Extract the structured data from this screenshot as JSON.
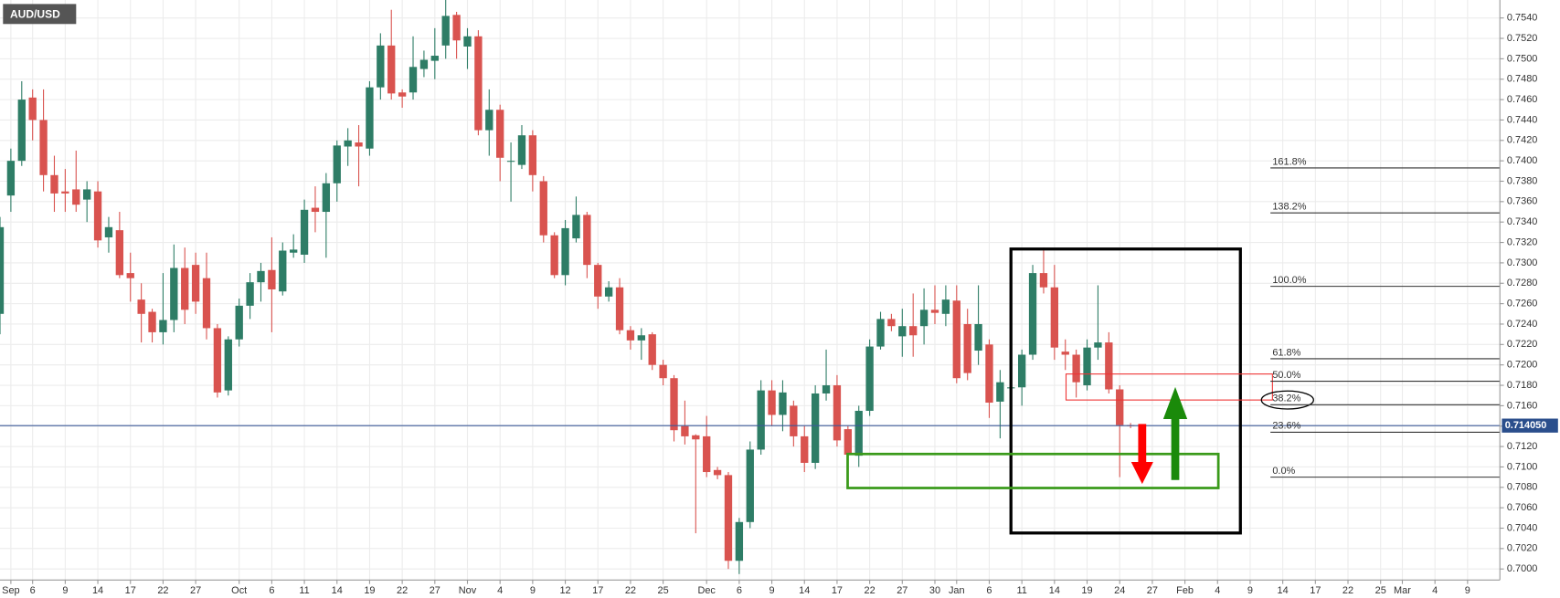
{
  "chart_data": {
    "type": "candlestick",
    "title": "AUD/USD",
    "categories": [
      null,
      "Sep",
      null,
      "6",
      null,
      null,
      "9",
      null,
      null,
      "14",
      null,
      null,
      "17",
      null,
      null,
      "22",
      null,
      null,
      "27",
      null,
      null,
      null,
      "Oct",
      null,
      null,
      "6",
      null,
      null,
      "11",
      null,
      null,
      "14",
      null,
      null,
      "19",
      null,
      null,
      "22",
      null,
      null,
      "27",
      null,
      null,
      "Nov",
      null,
      null,
      "4",
      null,
      null,
      "9",
      null,
      null,
      "12",
      null,
      null,
      "17",
      null,
      null,
      "22",
      null,
      null,
      "25",
      null,
      null,
      null,
      "Dec",
      null,
      null,
      "6",
      null,
      null,
      "9",
      null,
      null,
      "14",
      null,
      null,
      "17",
      null,
      null,
      "22",
      null,
      null,
      "27",
      null,
      null,
      "30",
      null,
      "Jan",
      null,
      null,
      "6",
      null,
      null,
      "11",
      null,
      null,
      "14",
      null,
      null,
      "19",
      null,
      null,
      "24",
      null,
      null,
      "27",
      null,
      null,
      "Feb",
      null,
      null,
      "4",
      null,
      null,
      "9",
      null,
      null,
      "14",
      null,
      null,
      "17",
      null,
      null,
      "22",
      null,
      null,
      "25",
      null,
      "Mar",
      null,
      null,
      "4",
      null,
      null,
      "9",
      null,
      null
    ],
    "open": [
      0.725,
      0.7366,
      0.74,
      0.7462,
      0.744,
      0.7386,
      0.737,
      0.7372,
      0.7362,
      0.737,
      0.7325,
      0.7332,
      0.729,
      0.7264,
      0.7252,
      0.7232,
      0.7244,
      0.7295,
      0.7298,
      0.7285,
      0.7236,
      0.7175,
      0.7225,
      0.7258,
      0.7281,
      0.7293,
      0.7272,
      0.731,
      0.7308,
      0.7354,
      0.735,
      0.7378,
      0.7414,
      0.7418,
      0.7412,
      0.7472,
      0.7513,
      0.7467,
      0.7467,
      0.749,
      0.7498,
      0.7513,
      0.7543,
      0.7512,
      0.7522,
      0.743,
      0.745,
      0.74,
      0.7396,
      0.7425,
      0.738,
      0.7327,
      0.7288,
      0.7324,
      0.7347,
      0.7298,
      0.7267,
      0.7276,
      0.7234,
      0.7224,
      0.723,
      0.72,
      0.7187,
      0.714,
      0.7131,
      0.713,
      0.7097,
      0.7092,
      0.7008,
      0.7046,
      0.7117,
      0.7175,
      0.7151,
      0.716,
      0.713,
      0.7104,
      0.7172,
      0.718,
      0.7137,
      0.7111,
      0.7155,
      0.7218,
      0.7245,
      0.7228,
      0.7238,
      0.7238,
      0.7254,
      0.725,
      0.7263,
      0.724,
      0.7214,
      0.722,
      0.7164,
      0.7177,
      0.7178,
      0.721,
      0.729,
      0.7276,
      0.7213,
      0.721,
      0.718,
      0.7217,
      0.7222,
      0.7176,
      0.7141,
      null,
      null,
      null,
      null,
      null,
      null,
      null,
      null,
      null,
      null,
      null,
      null,
      null,
      null,
      null,
      null,
      null,
      null,
      null,
      null,
      null,
      null,
      null,
      null,
      null,
      null,
      null,
      null,
      null,
      null,
      null,
      null,
      null
    ],
    "high": [
      0.7345,
      0.7412,
      0.7478,
      0.747,
      0.747,
      0.7405,
      0.7392,
      0.741,
      0.738,
      0.738,
      0.7345,
      0.735,
      0.731,
      0.728,
      0.7255,
      0.729,
      0.7318,
      0.7315,
      0.731,
      0.731,
      0.724,
      0.7228,
      0.7265,
      0.729,
      0.73,
      0.7325,
      0.732,
      0.7328,
      0.7362,
      0.7375,
      0.7388,
      0.742,
      0.7432,
      0.7435,
      0.7478,
      0.7525,
      0.7548,
      0.747,
      0.7522,
      0.7508,
      0.753,
      0.7558,
      0.7546,
      0.753,
      0.7528,
      0.747,
      0.7455,
      0.7418,
      0.7435,
      0.743,
      0.7385,
      0.733,
      0.7342,
      0.7365,
      0.735,
      0.73,
      0.7282,
      0.7285,
      0.7238,
      0.7236,
      0.7232,
      0.7205,
      0.719,
      0.7165,
      0.7132,
      0.715,
      0.71,
      0.7095,
      0.705,
      0.7125,
      0.7185,
      0.7185,
      0.7185,
      0.7165,
      0.714,
      0.718,
      0.7215,
      0.719,
      0.714,
      0.716,
      0.7225,
      0.7252,
      0.725,
      0.7255,
      0.727,
      0.7275,
      0.7278,
      0.7278,
      0.7278,
      0.7255,
      0.7278,
      0.7225,
      0.7195,
      0.719,
      0.7215,
      0.7298,
      0.7315,
      0.7298,
      0.7225,
      0.7215,
      0.7225,
      0.7278,
      0.7232,
      0.718,
      0.7143,
      null,
      null,
      null,
      null,
      null,
      null,
      null,
      null,
      null,
      null,
      null,
      null,
      null,
      null,
      null,
      null,
      null,
      null,
      null,
      null,
      null,
      null,
      null,
      null,
      null,
      null,
      null,
      null,
      null,
      null,
      null,
      null,
      null
    ],
    "low": [
      0.723,
      0.735,
      0.7395,
      0.742,
      0.737,
      0.735,
      0.735,
      0.735,
      0.734,
      0.7315,
      0.731,
      0.7285,
      0.7262,
      0.7222,
      0.7222,
      0.722,
      0.7232,
      0.724,
      0.725,
      0.7225,
      0.7168,
      0.717,
      0.7218,
      0.7245,
      0.7262,
      0.7232,
      0.7268,
      0.7305,
      0.73,
      0.733,
      0.7305,
      0.736,
      0.7395,
      0.7375,
      0.7405,
      0.746,
      0.746,
      0.7452,
      0.746,
      0.7482,
      0.748,
      0.75,
      0.75,
      0.749,
      0.7425,
      0.7405,
      0.738,
      0.736,
      0.7392,
      0.737,
      0.732,
      0.7285,
      0.7278,
      0.732,
      0.7285,
      0.7255,
      0.7262,
      0.723,
      0.7215,
      0.7205,
      0.7195,
      0.718,
      0.7125,
      0.7122,
      0.7035,
      0.709,
      0.7088,
      0.7,
      0.6995,
      0.704,
      0.7112,
      0.714,
      0.7135,
      0.712,
      0.7095,
      0.7098,
      0.7165,
      0.712,
      0.711,
      0.71,
      0.715,
      0.7215,
      0.7233,
      0.7208,
      0.7208,
      0.722,
      0.724,
      0.7238,
      0.7182,
      0.7185,
      0.72,
      0.7148,
      0.7128,
      0.7165,
      0.716,
      0.7205,
      0.727,
      0.7205,
      0.7195,
      0.7168,
      0.7175,
      0.7205,
      0.7172,
      0.709,
      0.7138,
      null,
      null,
      null,
      null,
      null,
      null,
      null,
      null,
      null,
      null,
      null,
      null,
      null,
      null,
      null,
      null,
      null,
      null,
      null,
      null,
      null,
      null,
      null,
      null,
      null,
      null,
      null,
      null,
      null,
      null,
      null,
      null,
      null
    ],
    "close": [
      0.7335,
      0.74,
      0.746,
      0.744,
      0.7386,
      0.7368,
      0.7368,
      0.7357,
      0.7372,
      0.7322,
      0.7335,
      0.7288,
      0.7285,
      0.725,
      0.7232,
      0.7244,
      0.7295,
      0.7254,
      0.7262,
      0.7236,
      0.7173,
      0.7225,
      0.7258,
      0.7281,
      0.7292,
      0.7274,
      0.7312,
      0.7313,
      0.7352,
      0.735,
      0.7378,
      0.7415,
      0.742,
      0.7414,
      0.7472,
      0.7513,
      0.7466,
      0.7463,
      0.7492,
      0.7499,
      0.7503,
      0.7542,
      0.7518,
      0.7522,
      0.743,
      0.745,
      0.7403,
      0.74,
      0.7425,
      0.7386,
      0.7327,
      0.7288,
      0.7334,
      0.7347,
      0.7298,
      0.7267,
      0.7276,
      0.7234,
      0.7224,
      0.7229,
      0.72,
      0.7187,
      0.7136,
      0.713,
      0.7127,
      0.7095,
      0.7092,
      0.7008,
      0.7046,
      0.7117,
      0.7175,
      0.7151,
      0.7173,
      0.713,
      0.7104,
      0.7172,
      0.718,
      0.7126,
      0.7112,
      0.7155,
      0.7218,
      0.7245,
      0.7238,
      0.7238,
      0.7229,
      0.7254,
      0.7251,
      0.7264,
      0.7187,
      0.7192,
      0.724,
      0.7163,
      0.7183,
      0.7178,
      0.721,
      0.729,
      0.7276,
      0.7217,
      0.721,
      0.7183,
      0.7217,
      0.7222,
      0.7176,
      0.7141,
      0.714,
      null,
      null,
      null,
      null,
      null,
      null,
      null,
      null,
      null,
      null,
      null,
      null,
      null,
      null,
      null,
      null,
      null,
      null,
      null,
      null,
      null,
      null,
      null,
      null,
      null,
      null,
      null,
      null,
      null,
      null,
      null,
      null,
      null
    ],
    "up_color": "#2e7d66",
    "down_color": "#d9534f",
    "ylim": [
      0.69892,
      0.75576
    ],
    "yticks": [
      {
        "value": 0.7,
        "label": "0.7000"
      },
      {
        "value": 0.702,
        "label": "0.7020"
      },
      {
        "value": 0.704,
        "label": "0.7040"
      },
      {
        "value": 0.706,
        "label": "0.7060"
      },
      {
        "value": 0.708,
        "label": "0.7080"
      },
      {
        "value": 0.71,
        "label": "0.7100"
      },
      {
        "value": 0.712,
        "label": "0.7120"
      },
      {
        "value": 0.714,
        "label": "0.7140"
      },
      {
        "value": 0.716,
        "label": "0.7160"
      },
      {
        "value": 0.718,
        "label": "0.7180"
      },
      {
        "value": 0.72,
        "label": "0.7200"
      },
      {
        "value": 0.722,
        "label": "0.7220"
      },
      {
        "value": 0.724,
        "label": "0.7240"
      },
      {
        "value": 0.726,
        "label": "0.7260"
      },
      {
        "value": 0.728,
        "label": "0.7280"
      },
      {
        "value": 0.73,
        "label": "0.7300"
      },
      {
        "value": 0.732,
        "label": "0.7320"
      },
      {
        "value": 0.734,
        "label": "0.7340"
      },
      {
        "value": 0.736,
        "label": "0.7360"
      },
      {
        "value": 0.738,
        "label": "0.7380"
      },
      {
        "value": 0.74,
        "label": "0.7400"
      },
      {
        "value": 0.742,
        "label": "0.7420"
      },
      {
        "value": 0.744,
        "label": "0.7440"
      },
      {
        "value": 0.746,
        "label": "0.7460"
      },
      {
        "value": 0.748,
        "label": "0.7480"
      },
      {
        "value": 0.75,
        "label": "0.7500"
      },
      {
        "value": 0.752,
        "label": "0.7520"
      },
      {
        "value": 0.754,
        "label": "0.7540"
      }
    ],
    "grid": true,
    "last_price": {
      "value": 0.71405,
      "label": "0.714050"
    },
    "fib_levels": [
      {
        "value": 0.7393,
        "label": "161.8%"
      },
      {
        "value": 0.7349,
        "label": "138.2%"
      },
      {
        "value": 0.7277,
        "label": "100.0%"
      },
      {
        "value": 0.7206,
        "label": "61.8%"
      },
      {
        "value": 0.7184,
        "label": "50.0%"
      },
      {
        "value": 0.7161,
        "label": "38.2%"
      },
      {
        "value": 0.7134,
        "label": "23.6%"
      },
      {
        "value": 0.709,
        "label": "0.0%"
      }
    ]
  }
}
